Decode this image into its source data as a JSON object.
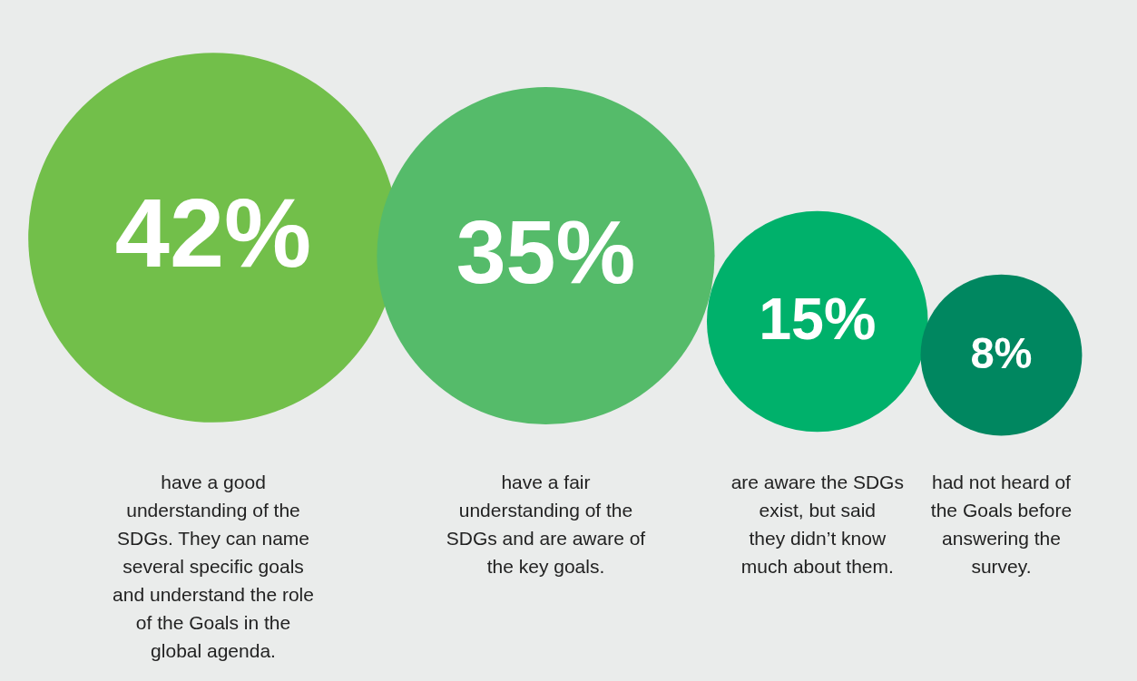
{
  "chart_data": {
    "type": "other",
    "categories": [
      "have a good understanding of the SDGs. They can name several specific goals and understand the role of the Goals in the global agenda.",
      "have a fair understanding of the SDGs and are aware of the key goals.",
      "are aware the SDGs exist, but said they didn’t know much about them.",
      "had not heard of the Goals before answering the survey."
    ],
    "values": [
      42,
      35,
      15,
      8
    ],
    "value_labels": [
      "42%",
      "35%",
      "15%",
      "8%"
    ],
    "colors": [
      "#72bf4a",
      "#55bb6a",
      "#00b16b",
      "#008760"
    ]
  }
}
